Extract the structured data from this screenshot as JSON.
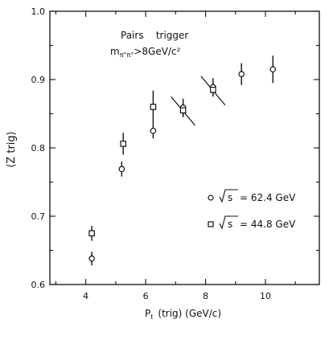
{
  "chart_data": {
    "type": "scatter",
    "xlabel_main": "P",
    "xlabel_sub": "t",
    "xlabel_rest": "(trig) (GeV/c)",
    "ylabel": "⟨Z trig⟩",
    "xlim": [
      2.8,
      11.8
    ],
    "ylim": [
      0.6,
      1.0
    ],
    "x_ticks": [
      4,
      6,
      8,
      10
    ],
    "y_ticks": [
      0.6,
      0.7,
      0.8,
      0.9,
      1.0
    ],
    "y_tick_labels": [
      "0.6",
      "0.7",
      "0.8",
      "0.9",
      "1.0"
    ],
    "annotation_line1": "Pairs    trigger",
    "annotation_line2": "m",
    "annotation_line2_sub": "π°π°",
    "annotation_line2_rest": ">8GeV/c²",
    "grid": false,
    "legend_position": "lower-right",
    "series": [
      {
        "name": "√s = 62.4 GeV",
        "legend_text": "= 62.4 GeV",
        "marker": "circle",
        "points": [
          {
            "x": 4.2,
            "y": 0.638,
            "err": 0.01
          },
          {
            "x": 5.2,
            "y": 0.769,
            "err": 0.011
          },
          {
            "x": 6.25,
            "y": 0.825,
            "err": 0.011
          },
          {
            "x": 7.25,
            "y": 0.859,
            "err": 0.013
          },
          {
            "x": 8.25,
            "y": 0.889,
            "err": 0.013
          },
          {
            "x": 9.2,
            "y": 0.908,
            "err": 0.016
          },
          {
            "x": 10.25,
            "y": 0.915,
            "err": 0.02
          }
        ]
      },
      {
        "name": "√s = 44.8 GeV",
        "legend_text": "= 44.8 GeV",
        "marker": "square",
        "points": [
          {
            "x": 4.2,
            "y": 0.675,
            "err": 0.011
          },
          {
            "x": 5.25,
            "y": 0.806,
            "err": 0.016
          },
          {
            "x": 6.25,
            "y": 0.86,
            "err": 0.024
          },
          {
            "x": 7.25,
            "y": 0.855,
            "err": 0.01
          },
          {
            "x": 8.25,
            "y": 0.885,
            "err": 0.01
          }
        ]
      }
    ],
    "slashed_points": [
      7.25,
      8.25
    ]
  }
}
